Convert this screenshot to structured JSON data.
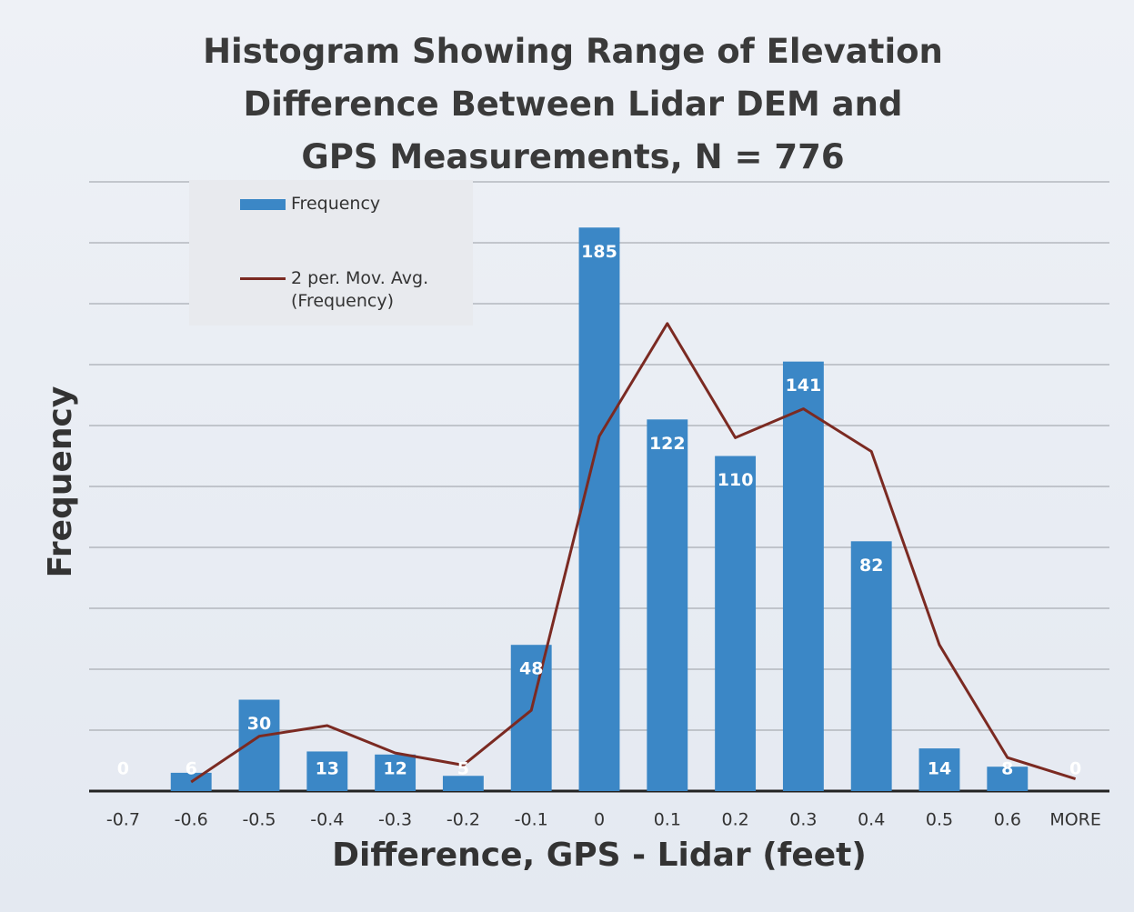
{
  "chart_data": {
    "type": "bar",
    "title": "Histogram Showing Range of Elevation Difference Between Lidar DEM and GPS Measurements, N = 776",
    "x_label": "Difference, GPS - Lidar (feet)",
    "y_label": "Frequency",
    "categories": [
      "-0.7",
      "-0.6",
      "-0.5",
      "-0.4",
      "-0.3",
      "-0.2",
      "-0.1",
      "0",
      "0.1",
      "0.2",
      "0.3",
      "0.4",
      "0.5",
      "0.6",
      "MORE"
    ],
    "series": [
      {
        "name": "Frequency",
        "type": "bar",
        "color": "#3b87c6",
        "values": [
          0,
          6,
          30,
          13,
          12,
          5,
          48,
          185,
          122,
          110,
          141,
          82,
          14,
          8,
          0
        ]
      },
      {
        "name": "2 per. Mov. Avg. (Frequency)",
        "type": "line",
        "color": "#7b2a22",
        "values": [
          null,
          3,
          18,
          21.5,
          12.5,
          8.5,
          26.5,
          116.5,
          153.5,
          116,
          125.5,
          111.5,
          48,
          11,
          4
        ]
      }
    ],
    "ylim": [
      0,
      200
    ],
    "yticks": [
      0,
      20,
      40,
      60,
      80,
      100,
      120,
      140,
      160,
      180,
      200
    ],
    "grid": true,
    "legend": "top-left"
  }
}
